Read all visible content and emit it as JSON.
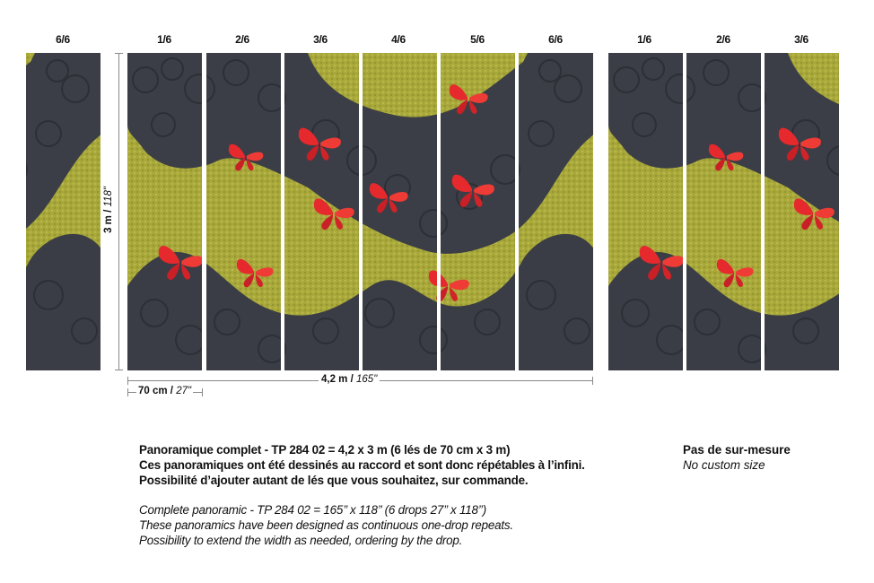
{
  "drop_labels": [
    "6/6",
    "1/6",
    "2/6",
    "3/6",
    "4/6",
    "5/6",
    "6/6",
    "1/6",
    "2/6",
    "3/6"
  ],
  "height_dimension": {
    "metric": "3 m",
    "imperial": "118\""
  },
  "width_dimension": {
    "metric": "4,2 m",
    "imperial": "165\""
  },
  "drop_width_dimension": {
    "metric": "70 cm",
    "imperial": "27\""
  },
  "description_fr": [
    "Panoramique complet - TP 284 02 = 4,2 x 3 m (6 lés de 70 cm x 3 m)",
    "Ces panoramiques ont été dessinés au raccord et sont donc répétables à l’infini.",
    "Possibilité d’ajouter autant de lés que vous souhaitez, sur commande."
  ],
  "description_en": [
    "Complete panoramic - TP 284 02 = 165’’ x 118’’ (6 drops 27’’ x 118’’)",
    "These panoramics have been designed as continuous one-drop repeats.",
    "Possibility to extend the width as needed, ordering by the drop."
  ],
  "custom_size": {
    "fr": "Pas de sur-mesure",
    "en": "No custom size"
  },
  "colors": {
    "gold": "#a9a93a",
    "dark": "#3a3d45",
    "butterfly": "#e5292d"
  }
}
